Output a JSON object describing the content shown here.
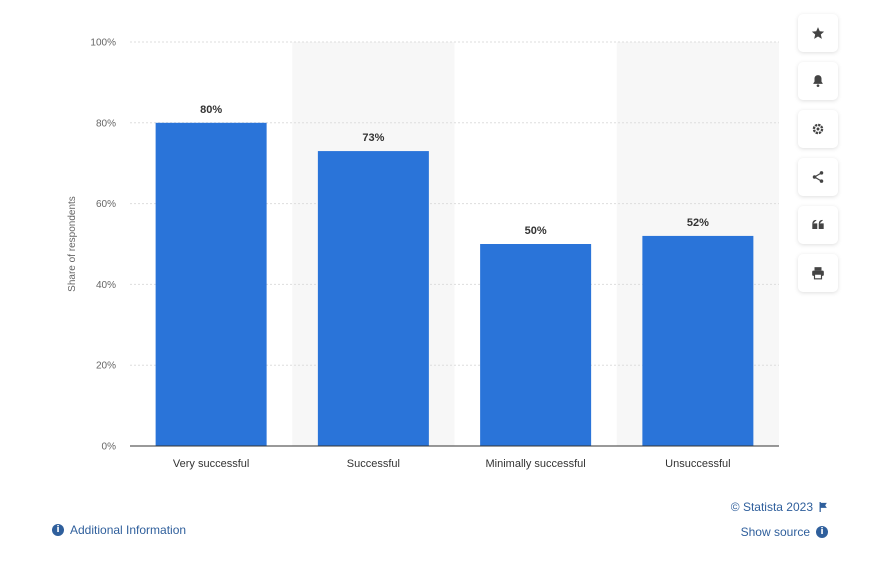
{
  "chart_data": {
    "type": "bar",
    "categories": [
      "Very successful",
      "Successful",
      "Minimally successful",
      "Unsuccessful"
    ],
    "values": [
      80,
      73,
      50,
      52
    ],
    "value_labels": [
      "80%",
      "73%",
      "50%",
      "52%"
    ],
    "ylabel": "Share of respondents",
    "ylim": [
      0,
      100
    ],
    "y_ticks": [
      0,
      20,
      40,
      60,
      80,
      100
    ],
    "y_tick_labels": [
      "0%",
      "20%",
      "40%",
      "60%",
      "80%",
      "100%"
    ],
    "grid": true,
    "bar_color": "#2a74d9",
    "band_color": "#f7f7f7",
    "axis_color": "#333333",
    "grid_color": "#dddddd"
  },
  "toolbar": {
    "icons": [
      "star-icon",
      "bell-icon",
      "gear-icon",
      "share-icon",
      "quote-icon",
      "print-icon"
    ]
  },
  "footer": {
    "credit": "© Statista 2023",
    "show_source": "Show source",
    "additional_info": "Additional Information",
    "info_glyph": "i",
    "link_color": "#2f5f9c"
  }
}
